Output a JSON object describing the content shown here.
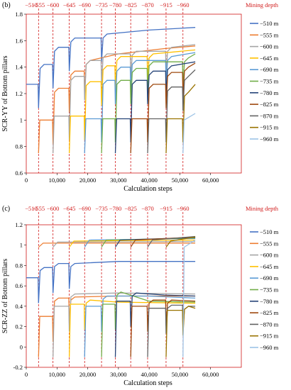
{
  "chart_data": [
    {
      "type": "line",
      "panel_label": "(b)",
      "top_axis_label": "Mining depth",
      "top_axis_ticks": [
        "−510",
        "−555",
        "−600",
        "−645",
        "−690",
        "−735",
        "−780",
        "−825",
        "−870",
        "−915",
        "−960"
      ],
      "mining_steps": [
        4000,
        8700,
        14000,
        19000,
        24500,
        29000,
        34000,
        39500,
        45500,
        51000
      ],
      "xlabel": "Calculation steps",
      "ylabel": "SCR-YY of Bottom pillars",
      "xlim": [
        0,
        70000
      ],
      "ylim": [
        0.6,
        1.8
      ],
      "xticks": [
        0,
        10000,
        20000,
        30000,
        40000,
        50000,
        60000
      ],
      "xtick_labels": [
        "0",
        "10,000",
        "20,000",
        "30,000",
        "40,000",
        "50,000",
        "60,000"
      ],
      "yticks": [
        0.6,
        0.8,
        1.0,
        1.2,
        1.4,
        1.6,
        1.8
      ],
      "ytick_labels": [
        "0.6",
        "0.8",
        "1",
        "1.2",
        "1.4",
        "1.6",
        "1.8"
      ],
      "grid": false,
      "legend_position": "right",
      "series": [
        {
          "name": "−510 m",
          "color": "#4472c4",
          "start_step": 0,
          "x": [
            0,
            4000,
            8700,
            14000,
            24500,
            40000,
            55000
          ],
          "y": [
            1.27,
            1.42,
            1.55,
            1.62,
            1.65,
            1.68,
            1.7
          ]
        },
        {
          "name": "−555 m",
          "color": "#ed7d31",
          "start_step": 4000,
          "x": [
            4000,
            8700,
            14000,
            19000,
            30000,
            45000,
            55000
          ],
          "y": [
            1.0,
            1.24,
            1.37,
            1.45,
            1.5,
            1.54,
            1.56
          ]
        },
        {
          "name": "−600 m",
          "color": "#a5a5a5",
          "start_step": 8700,
          "x": [
            8700,
            14000,
            19000,
            24500,
            34000,
            45500,
            55000
          ],
          "y": [
            1.03,
            1.33,
            1.45,
            1.5,
            1.52,
            1.55,
            1.57
          ]
        },
        {
          "name": "−645 m",
          "color": "#ffc000",
          "start_step": 14000,
          "x": [
            14000,
            19000,
            24500,
            29000,
            39500,
            55000
          ],
          "y": [
            1.03,
            1.29,
            1.41,
            1.48,
            1.5,
            1.53
          ]
        },
        {
          "name": "−690 m",
          "color": "#5b9bd5",
          "start_step": 19000,
          "x": [
            19000,
            24500,
            29000,
            34000,
            45500,
            55000
          ],
          "y": [
            1.01,
            1.3,
            1.4,
            1.45,
            1.48,
            1.51
          ]
        },
        {
          "name": "−735 m",
          "color": "#70ad47",
          "start_step": 24500,
          "x": [
            24500,
            29000,
            34000,
            39500,
            51000,
            55000
          ],
          "y": [
            1.01,
            1.3,
            1.39,
            1.44,
            1.47,
            1.5
          ]
        },
        {
          "name": "−780 m",
          "color": "#264478",
          "start_step": 29000,
          "x": [
            29000,
            34000,
            39500,
            45500,
            55000
          ],
          "y": [
            1.01,
            1.3,
            1.37,
            1.41,
            1.44
          ]
        },
        {
          "name": "−825 m",
          "color": "#9e480e",
          "start_step": 34000,
          "x": [
            34000,
            39500,
            45500,
            51000,
            55000
          ],
          "y": [
            1.01,
            1.27,
            1.36,
            1.4,
            1.43
          ]
        },
        {
          "name": "−870 m",
          "color": "#636363",
          "start_step": 39500,
          "x": [
            39500,
            45500,
            51000,
            55000
          ],
          "y": [
            1.01,
            1.25,
            1.33,
            1.38
          ]
        },
        {
          "name": "−915 m",
          "color": "#997300",
          "start_step": 45500,
          "x": [
            45500,
            51000,
            55000
          ],
          "y": [
            1.01,
            1.21,
            1.27
          ]
        },
        {
          "name": "−960 m",
          "color": "#9dc3e6",
          "start_step": 51000,
          "x": [
            51000,
            55000
          ],
          "y": [
            1.0,
            1.05
          ]
        }
      ]
    },
    {
      "type": "line",
      "panel_label": "(c)",
      "top_axis_label": "Mining depth",
      "top_axis_ticks": [
        "−510",
        "−555",
        "−600",
        "−645",
        "−690",
        "−735",
        "−780",
        "−825",
        "−870",
        "−915",
        "−960"
      ],
      "mining_steps": [
        4000,
        8700,
        14000,
        19000,
        24500,
        29000,
        34000,
        39500,
        45500,
        51000
      ],
      "xlabel": "Calculation steps",
      "ylabel": "SCR-ZZ of Bottom pillars",
      "xlim": [
        0,
        70000
      ],
      "ylim": [
        -0.2,
        1.2
      ],
      "xticks": [
        0,
        10000,
        20000,
        30000,
        40000,
        50000,
        60000
      ],
      "xtick_labels": [
        "0",
        "10,000",
        "20,000",
        "30,000",
        "40,000",
        "50,000",
        "60,000"
      ],
      "yticks": [
        -0.2,
        0,
        0.2,
        0.4,
        0.6,
        0.8,
        1.0,
        1.2
      ],
      "ytick_labels": [
        "-0.2",
        "0",
        "0.2",
        "0.4",
        "0.6",
        "0.8",
        "1",
        "1.2"
      ],
      "grid": false,
      "legend_position": "right",
      "series": [
        {
          "name": "−510 m",
          "color": "#4472c4",
          "start_step": 0,
          "x": [
            0,
            4000,
            8700,
            14000,
            30000,
            55000
          ],
          "y": [
            0.68,
            0.78,
            0.82,
            0.82,
            0.84,
            0.84
          ]
        },
        {
          "name": "−555 m",
          "color": "#ed7d31",
          "start_step": 4000,
          "x": [
            4000,
            8700,
            14000,
            30000,
            55000
          ],
          "y": [
            0.3,
            0.48,
            0.49,
            0.5,
            0.5
          ]
        },
        {
          "name": "−600 m",
          "color": "#a5a5a5",
          "start_step": 8700,
          "x": [
            8700,
            14000,
            30000,
            55000
          ],
          "y": [
            0.4,
            0.52,
            0.53,
            0.52
          ]
        },
        {
          "name": "−645 m",
          "color": "#ffc000",
          "start_step": 14000,
          "x": [
            14000,
            19000,
            30000,
            55000
          ],
          "y": [
            0.42,
            0.46,
            0.44,
            0.43
          ]
        },
        {
          "name": "−690 m",
          "color": "#5b9bd5",
          "start_step": 19000,
          "x": [
            19000,
            24500,
            40000,
            55000
          ],
          "y": [
            0.4,
            0.5,
            0.5,
            0.48
          ]
        },
        {
          "name": "−735 m",
          "color": "#70ad47",
          "start_step": 24500,
          "x": [
            24500,
            29000,
            40000,
            55000
          ],
          "y": [
            0.42,
            0.54,
            0.45,
            0.44
          ]
        },
        {
          "name": "−780 m",
          "color": "#264478",
          "start_step": 29000,
          "x": [
            29000,
            34000,
            45000,
            55000
          ],
          "y": [
            0.45,
            0.53,
            0.51,
            0.5
          ]
        },
        {
          "name": "−825 m",
          "color": "#9e480e",
          "start_step": 34000,
          "x": [
            34000,
            39500,
            45500,
            55000
          ],
          "y": [
            0.4,
            0.46,
            0.46,
            0.45
          ]
        },
        {
          "name": "−870 m",
          "color": "#636363",
          "start_step": 39500,
          "x": [
            39500,
            45500,
            51000,
            55000
          ],
          "y": [
            0.38,
            0.41,
            0.4,
            0.4
          ]
        },
        {
          "name": "−915 m",
          "color": "#997300",
          "start_step": 45500,
          "x": [
            45500,
            51000,
            55000
          ],
          "y": [
            0.36,
            0.4,
            0.38
          ]
        },
        {
          "name": "−960 m",
          "color": "#9dc3e6",
          "start_step": 51000,
          "x": [
            51000,
            55000
          ],
          "y": [
            0.98,
            1.05
          ]
        }
      ],
      "upper_band": {
        "description_color_series": [
          "−555 m",
          "−600 m",
          "−645 m",
          "−690 m",
          "−735 m",
          "−780 m",
          "−825 m",
          "−870 m",
          "−915 m"
        ],
        "values": [
          1.02,
          1.03,
          1.04,
          1.05,
          1.05,
          1.05,
          1.05,
          1.05,
          1.04
        ]
      }
    }
  ]
}
